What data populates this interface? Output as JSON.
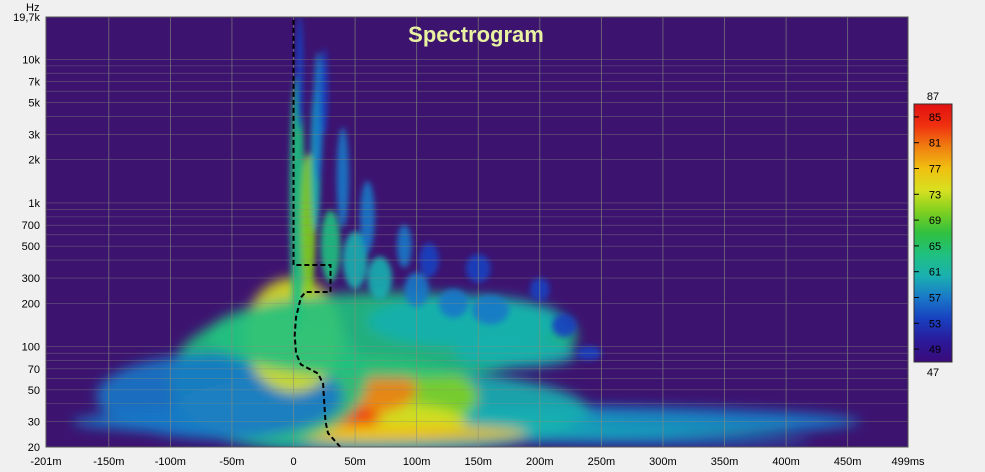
{
  "chart_data": {
    "type": "heatmap",
    "title": "Spectrogram",
    "y_unit": "Hz",
    "x_unit": "ms",
    "x_range_s": [
      -0.201,
      0.499
    ],
    "y_range_hz": [
      20,
      19700
    ],
    "y_scale": "log",
    "x_ticks": [
      {
        "v": -0.201,
        "label": "-201m"
      },
      {
        "v": -0.15,
        "label": "-150m"
      },
      {
        "v": -0.1,
        "label": "-100m"
      },
      {
        "v": -0.05,
        "label": "-50m"
      },
      {
        "v": 0,
        "label": "0"
      },
      {
        "v": 0.05,
        "label": "50m"
      },
      {
        "v": 0.1,
        "label": "100m"
      },
      {
        "v": 0.15,
        "label": "150m"
      },
      {
        "v": 0.2,
        "label": "200m"
      },
      {
        "v": 0.25,
        "label": "250m"
      },
      {
        "v": 0.3,
        "label": "300m"
      },
      {
        "v": 0.35,
        "label": "350m"
      },
      {
        "v": 0.4,
        "label": "400m"
      },
      {
        "v": 0.45,
        "label": "450m"
      },
      {
        "v": 0.499,
        "label": "499ms"
      }
    ],
    "y_ticks": [
      {
        "v": 19700,
        "label": "19,7k"
      },
      {
        "v": 10000,
        "label": "10k"
      },
      {
        "v": 7000,
        "label": "7k"
      },
      {
        "v": 5000,
        "label": "5k"
      },
      {
        "v": 3000,
        "label": "3k"
      },
      {
        "v": 2000,
        "label": "2k"
      },
      {
        "v": 1000,
        "label": "1k"
      },
      {
        "v": 700,
        "label": "700"
      },
      {
        "v": 500,
        "label": "500"
      },
      {
        "v": 300,
        "label": "300"
      },
      {
        "v": 200,
        "label": "200"
      },
      {
        "v": 100,
        "label": "100"
      },
      {
        "v": 70,
        "label": "70"
      },
      {
        "v": 50,
        "label": "50"
      },
      {
        "v": 30,
        "label": "30"
      },
      {
        "v": 20,
        "label": "20"
      }
    ],
    "color_scale": {
      "min": 47,
      "max": 87,
      "ticks": [
        85,
        81,
        77,
        73,
        69,
        65,
        61,
        57,
        53,
        49
      ],
      "min_label": "47",
      "max_label": "87",
      "colors": [
        "#3a0a7a",
        "#2a1a9a",
        "#1840c0",
        "#1a78c8",
        "#1ab0b0",
        "#20c080",
        "#30c040",
        "#80d020",
        "#d8e020",
        "#f0c010",
        "#f08010",
        "#f03010",
        "#e01010"
      ]
    },
    "background_color": "#3d1370",
    "peak_delay_curve": [
      {
        "freq": 20,
        "t": 0.038
      },
      {
        "freq": 25,
        "t": 0.028
      },
      {
        "freq": 30,
        "t": 0.026
      },
      {
        "freq": 40,
        "t": 0.025
      },
      {
        "freq": 55,
        "t": 0.024
      },
      {
        "freq": 65,
        "t": 0.02
      },
      {
        "freq": 75,
        "t": 0.006
      },
      {
        "freq": 90,
        "t": 0.002
      },
      {
        "freq": 120,
        "t": 0.001
      },
      {
        "freq": 160,
        "t": 0.002
      },
      {
        "freq": 220,
        "t": 0.006
      },
      {
        "freq": 240,
        "t": 0.01
      },
      {
        "freq": 240,
        "t": 0.03
      },
      {
        "freq": 370,
        "t": 0.03
      },
      {
        "freq": 370,
        "t": 0.0
      },
      {
        "freq": 19700,
        "t": 0.0
      }
    ]
  }
}
